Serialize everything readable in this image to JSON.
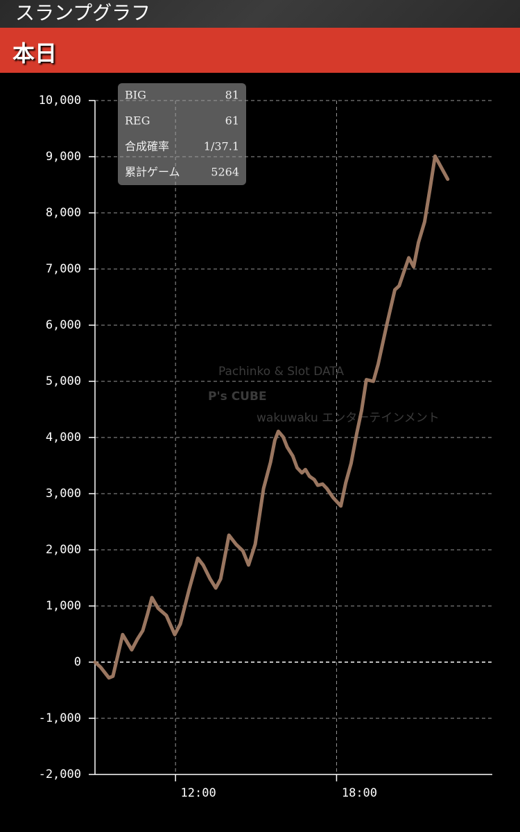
{
  "header": {
    "title": "スランプグラフ",
    "tab": "本日"
  },
  "stats": [
    {
      "label": "BIG",
      "value": 81
    },
    {
      "label": "REG",
      "value": 61
    },
    {
      "label": "合成確率",
      "value": "1/37.1"
    },
    {
      "label": "累計ゲーム",
      "value": 5264
    }
  ],
  "watermark": {
    "tagline": "Pachinko & Slot DATA",
    "brand": "P's CUBE",
    "sub": "wakuwaku エンターテインメント"
  },
  "chart_data": {
    "type": "line",
    "x": [
      9.0,
      9.21,
      9.52,
      9.67,
      10.03,
      10.37,
      10.58,
      10.78,
      10.96,
      11.12,
      11.35,
      11.66,
      11.97,
      12.18,
      12.51,
      12.83,
      13.03,
      13.29,
      13.5,
      13.68,
      13.99,
      14.25,
      14.51,
      14.72,
      14.97,
      15.28,
      15.54,
      15.7,
      15.83,
      16.01,
      16.16,
      16.37,
      16.53,
      16.71,
      16.84,
      16.99,
      17.17,
      17.3,
      17.48,
      17.64,
      17.87,
      18.16,
      18.34,
      18.54,
      18.75,
      18.93,
      19.11,
      19.37,
      19.55,
      19.86,
      20.17,
      20.33,
      20.53,
      20.69,
      20.87,
      21.05,
      21.28,
      21.49,
      21.67,
      22.14
    ],
    "series": [
      {
        "color": "#9a7660",
        "values": [
          0,
          -90,
          -280,
          -250,
          490,
          220,
          410,
          560,
          860,
          1150,
          960,
          830,
          490,
          680,
          1300,
          1850,
          1730,
          1480,
          1320,
          1480,
          2260,
          2100,
          1980,
          1730,
          2100,
          3090,
          3560,
          3950,
          4110,
          4010,
          3830,
          3670,
          3460,
          3370,
          3430,
          3310,
          3250,
          3150,
          3170,
          3090,
          2930,
          2780,
          3190,
          3540,
          4070,
          4480,
          5030,
          5000,
          5310,
          5990,
          6630,
          6700,
          6980,
          7200,
          7040,
          7470,
          7840,
          8460,
          9010,
          8600
        ]
      }
    ],
    "xlim": [
      9,
      23.8
    ],
    "xticks": [
      {
        "value": 12,
        "label": "12:00"
      },
      {
        "value": 18,
        "label": "18:00"
      }
    ],
    "ylim": [
      -2000,
      10000
    ],
    "yticks": [
      {
        "value": -2000,
        "label": "-2,000"
      },
      {
        "value": -1000,
        "label": "-1,000"
      },
      0,
      {
        "value": 1000,
        "label": "1,000"
      },
      {
        "value": 2000,
        "label": "2,000"
      },
      {
        "value": 3000,
        "label": "3,000"
      },
      {
        "value": 4000,
        "label": "4,000"
      },
      {
        "value": 5000,
        "label": "5,000"
      },
      {
        "value": 6000,
        "label": "6,000"
      },
      {
        "value": 7000,
        "label": "7,000"
      },
      {
        "value": 8000,
        "label": "8,000"
      },
      {
        "value": 9000,
        "label": "9,000"
      },
      {
        "value": 10000,
        "label": "10,000"
      }
    ],
    "grid": true
  }
}
